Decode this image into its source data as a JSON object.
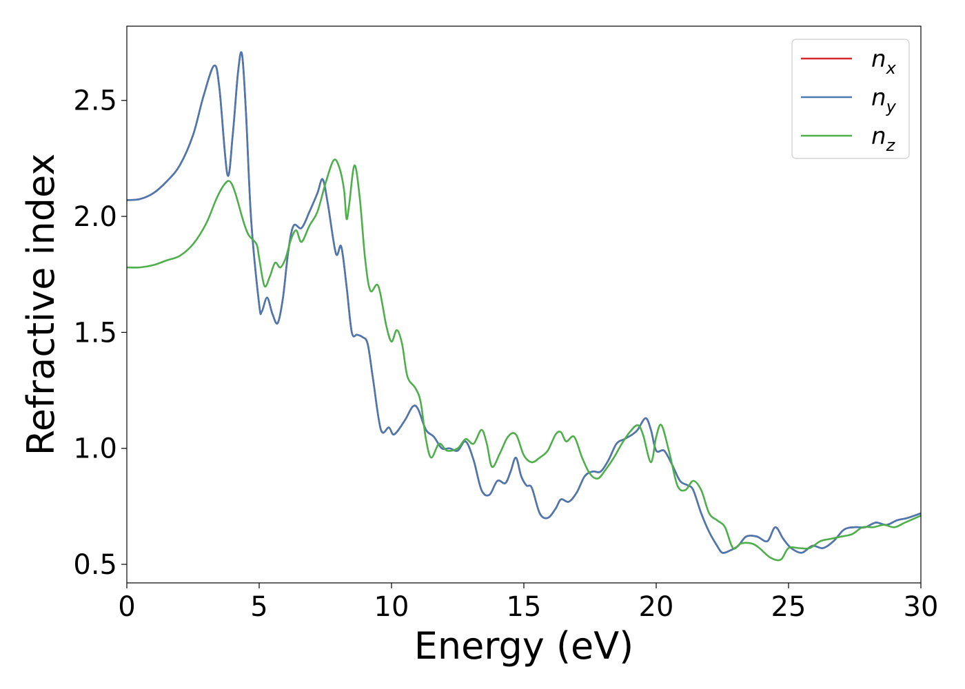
{
  "chart_data": {
    "type": "line",
    "title": "",
    "xlabel": "Energy (eV)",
    "ylabel": "Refractive index",
    "xlim": [
      0,
      30
    ],
    "ylim": [
      0.42,
      2.82
    ],
    "xticks": [
      0,
      5,
      10,
      15,
      20,
      25,
      30
    ],
    "xtick_labels": [
      "0",
      "5",
      "10",
      "15",
      "20",
      "25",
      "30"
    ],
    "yticks": [
      0.5,
      1.0,
      1.5,
      2.0,
      2.5
    ],
    "ytick_labels": [
      "0.5",
      "1.0",
      "1.5",
      "2.0",
      "2.5"
    ],
    "grid": false,
    "legend_position": "top-right",
    "series": [
      {
        "name": "n",
        "subscript": "x",
        "color": "#d62728",
        "points": [
          [
            0,
            2.07
          ],
          [
            0.5,
            2.075
          ],
          [
            1,
            2.1
          ],
          [
            1.5,
            2.15
          ],
          [
            2,
            2.22
          ],
          [
            2.5,
            2.35
          ],
          [
            2.9,
            2.52
          ],
          [
            3.3,
            2.65
          ],
          [
            3.5,
            2.55
          ],
          [
            3.8,
            2.18
          ],
          [
            4.0,
            2.35
          ],
          [
            4.2,
            2.62
          ],
          [
            4.35,
            2.7
          ],
          [
            4.5,
            2.45
          ],
          [
            4.7,
            1.98
          ],
          [
            5.0,
            1.62
          ],
          [
            5.1,
            1.59
          ],
          [
            5.3,
            1.65
          ],
          [
            5.5,
            1.58
          ],
          [
            5.7,
            1.54
          ],
          [
            5.9,
            1.65
          ],
          [
            6.1,
            1.85
          ],
          [
            6.3,
            1.96
          ],
          [
            6.6,
            1.95
          ],
          [
            6.9,
            2.02
          ],
          [
            7.2,
            2.1
          ],
          [
            7.4,
            2.16
          ],
          [
            7.6,
            2.05
          ],
          [
            7.9,
            1.84
          ],
          [
            8.1,
            1.87
          ],
          [
            8.3,
            1.7
          ],
          [
            8.5,
            1.5
          ],
          [
            8.7,
            1.49
          ],
          [
            8.9,
            1.48
          ],
          [
            9.1,
            1.45
          ],
          [
            9.3,
            1.3
          ],
          [
            9.6,
            1.08
          ],
          [
            9.9,
            1.09
          ],
          [
            10.1,
            1.06
          ],
          [
            10.5,
            1.12
          ],
          [
            10.8,
            1.18
          ],
          [
            11.0,
            1.17
          ],
          [
            11.3,
            1.08
          ],
          [
            11.6,
            1.05
          ],
          [
            11.9,
            1.0
          ],
          [
            12.2,
            1.0
          ],
          [
            12.5,
            0.99
          ],
          [
            12.8,
            1.03
          ],
          [
            13.1,
            0.95
          ],
          [
            13.4,
            0.82
          ],
          [
            13.7,
            0.8
          ],
          [
            14.0,
            0.86
          ],
          [
            14.3,
            0.85
          ],
          [
            14.5,
            0.9
          ],
          [
            14.7,
            0.96
          ],
          [
            14.9,
            0.88
          ],
          [
            15.1,
            0.84
          ],
          [
            15.3,
            0.83
          ],
          [
            15.6,
            0.72
          ],
          [
            15.9,
            0.7
          ],
          [
            16.2,
            0.74
          ],
          [
            16.4,
            0.78
          ],
          [
            16.7,
            0.77
          ],
          [
            17.0,
            0.81
          ],
          [
            17.3,
            0.88
          ],
          [
            17.6,
            0.9
          ],
          [
            17.9,
            0.9
          ],
          [
            18.2,
            0.95
          ],
          [
            18.5,
            1.02
          ],
          [
            18.8,
            1.04
          ],
          [
            19.1,
            1.06
          ],
          [
            19.3,
            1.08
          ],
          [
            19.6,
            1.13
          ],
          [
            19.8,
            1.08
          ],
          [
            20.0,
            0.99
          ],
          [
            20.3,
            0.99
          ],
          [
            20.6,
            0.93
          ],
          [
            20.9,
            0.86
          ],
          [
            21.2,
            0.84
          ],
          [
            21.4,
            0.82
          ],
          [
            21.7,
            0.72
          ],
          [
            22.0,
            0.64
          ],
          [
            22.3,
            0.58
          ],
          [
            22.5,
            0.55
          ],
          [
            22.8,
            0.56
          ],
          [
            23.1,
            0.58
          ],
          [
            23.4,
            0.62
          ],
          [
            23.8,
            0.62
          ],
          [
            24.2,
            0.6
          ],
          [
            24.5,
            0.66
          ],
          [
            24.8,
            0.61
          ],
          [
            25.1,
            0.57
          ],
          [
            25.5,
            0.55
          ],
          [
            25.9,
            0.58
          ],
          [
            26.3,
            0.57
          ],
          [
            26.7,
            0.6
          ],
          [
            27.1,
            0.65
          ],
          [
            27.5,
            0.66
          ],
          [
            27.9,
            0.66
          ],
          [
            28.3,
            0.68
          ],
          [
            28.7,
            0.67
          ],
          [
            29.1,
            0.69
          ],
          [
            29.5,
            0.7
          ],
          [
            30,
            0.72
          ]
        ]
      },
      {
        "name": "n",
        "subscript": "y",
        "color": "#4a78b0",
        "points": [
          [
            0,
            2.07
          ],
          [
            0.5,
            2.075
          ],
          [
            1,
            2.1
          ],
          [
            1.5,
            2.15
          ],
          [
            2,
            2.22
          ],
          [
            2.5,
            2.35
          ],
          [
            2.9,
            2.52
          ],
          [
            3.3,
            2.65
          ],
          [
            3.5,
            2.55
          ],
          [
            3.8,
            2.18
          ],
          [
            4.0,
            2.35
          ],
          [
            4.2,
            2.62
          ],
          [
            4.35,
            2.7
          ],
          [
            4.5,
            2.45
          ],
          [
            4.7,
            1.98
          ],
          [
            5.0,
            1.62
          ],
          [
            5.1,
            1.59
          ],
          [
            5.3,
            1.65
          ],
          [
            5.5,
            1.58
          ],
          [
            5.7,
            1.54
          ],
          [
            5.9,
            1.65
          ],
          [
            6.1,
            1.85
          ],
          [
            6.3,
            1.96
          ],
          [
            6.6,
            1.95
          ],
          [
            6.9,
            2.02
          ],
          [
            7.2,
            2.1
          ],
          [
            7.4,
            2.16
          ],
          [
            7.6,
            2.05
          ],
          [
            7.9,
            1.84
          ],
          [
            8.1,
            1.87
          ],
          [
            8.3,
            1.7
          ],
          [
            8.5,
            1.5
          ],
          [
            8.7,
            1.49
          ],
          [
            8.9,
            1.48
          ],
          [
            9.1,
            1.45
          ],
          [
            9.3,
            1.3
          ],
          [
            9.6,
            1.08
          ],
          [
            9.9,
            1.09
          ],
          [
            10.1,
            1.06
          ],
          [
            10.5,
            1.12
          ],
          [
            10.8,
            1.18
          ],
          [
            11.0,
            1.17
          ],
          [
            11.3,
            1.08
          ],
          [
            11.6,
            1.05
          ],
          [
            11.9,
            1.0
          ],
          [
            12.2,
            1.0
          ],
          [
            12.5,
            0.99
          ],
          [
            12.8,
            1.03
          ],
          [
            13.1,
            0.95
          ],
          [
            13.4,
            0.82
          ],
          [
            13.7,
            0.8
          ],
          [
            14.0,
            0.86
          ],
          [
            14.3,
            0.85
          ],
          [
            14.5,
            0.9
          ],
          [
            14.7,
            0.96
          ],
          [
            14.9,
            0.88
          ],
          [
            15.1,
            0.84
          ],
          [
            15.3,
            0.83
          ],
          [
            15.6,
            0.72
          ],
          [
            15.9,
            0.7
          ],
          [
            16.2,
            0.74
          ],
          [
            16.4,
            0.78
          ],
          [
            16.7,
            0.77
          ],
          [
            17.0,
            0.81
          ],
          [
            17.3,
            0.88
          ],
          [
            17.6,
            0.9
          ],
          [
            17.9,
            0.9
          ],
          [
            18.2,
            0.95
          ],
          [
            18.5,
            1.02
          ],
          [
            18.8,
            1.04
          ],
          [
            19.1,
            1.06
          ],
          [
            19.3,
            1.08
          ],
          [
            19.6,
            1.13
          ],
          [
            19.8,
            1.08
          ],
          [
            20.0,
            0.99
          ],
          [
            20.3,
            0.99
          ],
          [
            20.6,
            0.93
          ],
          [
            20.9,
            0.86
          ],
          [
            21.2,
            0.84
          ],
          [
            21.4,
            0.82
          ],
          [
            21.7,
            0.72
          ],
          [
            22.0,
            0.64
          ],
          [
            22.3,
            0.58
          ],
          [
            22.5,
            0.55
          ],
          [
            22.8,
            0.56
          ],
          [
            23.1,
            0.58
          ],
          [
            23.4,
            0.62
          ],
          [
            23.8,
            0.62
          ],
          [
            24.2,
            0.6
          ],
          [
            24.5,
            0.66
          ],
          [
            24.8,
            0.61
          ],
          [
            25.1,
            0.57
          ],
          [
            25.5,
            0.55
          ],
          [
            25.9,
            0.58
          ],
          [
            26.3,
            0.57
          ],
          [
            26.7,
            0.6
          ],
          [
            27.1,
            0.65
          ],
          [
            27.5,
            0.66
          ],
          [
            27.9,
            0.66
          ],
          [
            28.3,
            0.68
          ],
          [
            28.7,
            0.67
          ],
          [
            29.1,
            0.69
          ],
          [
            29.5,
            0.7
          ],
          [
            30,
            0.72
          ]
        ]
      },
      {
        "name": "n",
        "subscript": "z",
        "color": "#4daf4a",
        "points": [
          [
            0,
            1.78
          ],
          [
            0.5,
            1.78
          ],
          [
            1,
            1.79
          ],
          [
            1.5,
            1.81
          ],
          [
            2,
            1.83
          ],
          [
            2.5,
            1.88
          ],
          [
            3.0,
            1.97
          ],
          [
            3.4,
            2.08
          ],
          [
            3.7,
            2.14
          ],
          [
            3.9,
            2.15
          ],
          [
            4.1,
            2.1
          ],
          [
            4.4,
            1.98
          ],
          [
            4.6,
            1.92
          ],
          [
            4.9,
            1.88
          ],
          [
            5.0,
            1.82
          ],
          [
            5.2,
            1.7
          ],
          [
            5.4,
            1.74
          ],
          [
            5.6,
            1.8
          ],
          [
            5.8,
            1.78
          ],
          [
            6.0,
            1.82
          ],
          [
            6.2,
            1.9
          ],
          [
            6.4,
            1.94
          ],
          [
            6.6,
            1.89
          ],
          [
            6.9,
            1.96
          ],
          [
            7.2,
            2.02
          ],
          [
            7.5,
            2.14
          ],
          [
            7.8,
            2.24
          ],
          [
            8.0,
            2.22
          ],
          [
            8.2,
            2.12
          ],
          [
            8.3,
            1.99
          ],
          [
            8.4,
            2.05
          ],
          [
            8.6,
            2.22
          ],
          [
            8.8,
            2.08
          ],
          [
            9.0,
            1.82
          ],
          [
            9.2,
            1.68
          ],
          [
            9.5,
            1.7
          ],
          [
            9.8,
            1.53
          ],
          [
            10.0,
            1.46
          ],
          [
            10.2,
            1.51
          ],
          [
            10.4,
            1.45
          ],
          [
            10.6,
            1.31
          ],
          [
            10.9,
            1.26
          ],
          [
            11.1,
            1.2
          ],
          [
            11.3,
            1.04
          ],
          [
            11.5,
            0.96
          ],
          [
            11.8,
            1.02
          ],
          [
            12.1,
            0.99
          ],
          [
            12.5,
            1.0
          ],
          [
            12.8,
            1.04
          ],
          [
            13.1,
            1.02
          ],
          [
            13.4,
            1.08
          ],
          [
            13.6,
            1.02
          ],
          [
            13.8,
            0.92
          ],
          [
            14.1,
            0.98
          ],
          [
            14.4,
            1.05
          ],
          [
            14.7,
            1.06
          ],
          [
            15.0,
            0.97
          ],
          [
            15.3,
            0.94
          ],
          [
            15.6,
            0.96
          ],
          [
            15.9,
            0.99
          ],
          [
            16.2,
            1.06
          ],
          [
            16.4,
            1.07
          ],
          [
            16.6,
            1.03
          ],
          [
            16.9,
            1.05
          ],
          [
            17.2,
            0.96
          ],
          [
            17.5,
            0.89
          ],
          [
            17.8,
            0.87
          ],
          [
            18.1,
            0.91
          ],
          [
            18.4,
            0.96
          ],
          [
            18.7,
            1.02
          ],
          [
            19.0,
            1.07
          ],
          [
            19.3,
            1.1
          ],
          [
            19.5,
            1.06
          ],
          [
            19.8,
            0.94
          ],
          [
            20.0,
            1.05
          ],
          [
            20.2,
            1.1
          ],
          [
            20.5,
            0.98
          ],
          [
            20.8,
            0.84
          ],
          [
            21.1,
            0.82
          ],
          [
            21.4,
            0.86
          ],
          [
            21.7,
            0.82
          ],
          [
            22.0,
            0.72
          ],
          [
            22.3,
            0.69
          ],
          [
            22.6,
            0.66
          ],
          [
            22.9,
            0.57
          ],
          [
            23.2,
            0.59
          ],
          [
            23.6,
            0.59
          ],
          [
            23.9,
            0.57
          ],
          [
            24.3,
            0.53
          ],
          [
            24.7,
            0.52
          ],
          [
            25.0,
            0.57
          ],
          [
            25.4,
            0.57
          ],
          [
            25.8,
            0.57
          ],
          [
            26.2,
            0.6
          ],
          [
            26.6,
            0.61
          ],
          [
            27.0,
            0.62
          ],
          [
            27.4,
            0.63
          ],
          [
            27.8,
            0.66
          ],
          [
            28.2,
            0.66
          ],
          [
            28.6,
            0.67
          ],
          [
            29.0,
            0.66
          ],
          [
            29.4,
            0.68
          ],
          [
            30,
            0.71
          ]
        ]
      }
    ]
  }
}
